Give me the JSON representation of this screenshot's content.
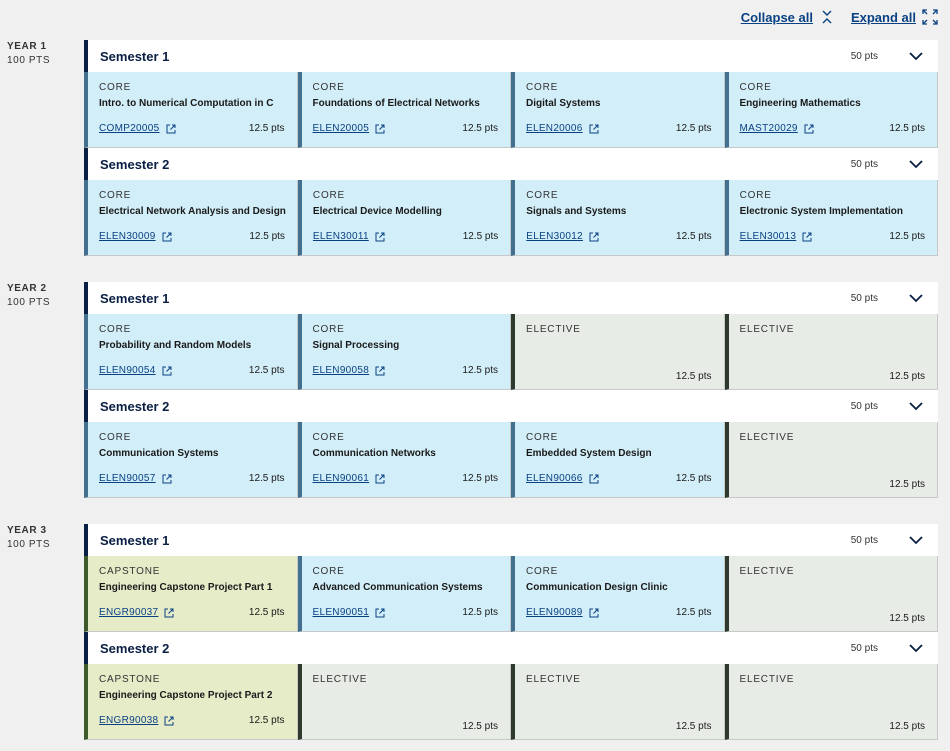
{
  "toolbar": {
    "collapse_label": "Collapse all",
    "expand_label": "Expand all"
  },
  "years": [
    {
      "label": "YEAR 1",
      "points": "100 PTS",
      "semesters": [
        {
          "title": "Semester 1",
          "points": "50 pts",
          "subjects": [
            {
              "type": "CORE",
              "name": "Intro. to Numerical Computation in C",
              "code": "COMP20005",
              "points": "12.5 pts"
            },
            {
              "type": "CORE",
              "name": "Foundations of Electrical Networks",
              "code": "ELEN20005",
              "points": "12.5 pts"
            },
            {
              "type": "CORE",
              "name": "Digital Systems",
              "code": "ELEN20006",
              "points": "12.5 pts"
            },
            {
              "type": "CORE",
              "name": "Engineering Mathematics",
              "code": "MAST20029",
              "points": "12.5 pts"
            }
          ]
        },
        {
          "title": "Semester 2",
          "points": "50 pts",
          "subjects": [
            {
              "type": "CORE",
              "name": "Electrical Network Analysis and Design",
              "code": "ELEN30009",
              "points": "12.5 pts"
            },
            {
              "type": "CORE",
              "name": "Electrical Device Modelling",
              "code": "ELEN30011",
              "points": "12.5 pts"
            },
            {
              "type": "CORE",
              "name": "Signals and Systems",
              "code": "ELEN30012",
              "points": "12.5 pts"
            },
            {
              "type": "CORE",
              "name": "Electronic System Implementation",
              "code": "ELEN30013",
              "points": "12.5 pts"
            }
          ]
        }
      ]
    },
    {
      "label": "YEAR 2",
      "points": "100 PTS",
      "semesters": [
        {
          "title": "Semester 1",
          "points": "50 pts",
          "subjects": [
            {
              "type": "CORE",
              "name": "Probability and Random Models",
              "code": "ELEN90054",
              "points": "12.5 pts"
            },
            {
              "type": "CORE",
              "name": "Signal Processing",
              "code": "ELEN90058",
              "points": "12.5 pts"
            },
            {
              "type": "ELECTIVE",
              "name": "",
              "code": "",
              "points": "12.5 pts"
            },
            {
              "type": "ELECTIVE",
              "name": "",
              "code": "",
              "points": "12.5 pts"
            }
          ]
        },
        {
          "title": "Semester 2",
          "points": "50 pts",
          "subjects": [
            {
              "type": "CORE",
              "name": "Communication Systems",
              "code": "ELEN90057",
              "points": "12.5 pts"
            },
            {
              "type": "CORE",
              "name": "Communication Networks",
              "code": "ELEN90061",
              "points": "12.5 pts"
            },
            {
              "type": "CORE",
              "name": "Embedded System Design",
              "code": "ELEN90066",
              "points": "12.5 pts"
            },
            {
              "type": "ELECTIVE",
              "name": "",
              "code": "",
              "points": "12.5 pts"
            }
          ]
        }
      ]
    },
    {
      "label": "YEAR 3",
      "points": "100 PTS",
      "semesters": [
        {
          "title": "Semester 1",
          "points": "50 pts",
          "subjects": [
            {
              "type": "CAPSTONE",
              "name": "Engineering Capstone Project Part 1",
              "code": "ENGR90037",
              "points": "12.5 pts"
            },
            {
              "type": "CORE",
              "name": "Advanced Communication Systems",
              "code": "ELEN90051",
              "points": "12.5 pts"
            },
            {
              "type": "CORE",
              "name": "Communication Design Clinic",
              "code": "ELEN90089",
              "points": "12.5 pts"
            },
            {
              "type": "ELECTIVE",
              "name": "",
              "code": "",
              "points": "12.5 pts"
            }
          ]
        },
        {
          "title": "Semester 2",
          "points": "50 pts",
          "subjects": [
            {
              "type": "CAPSTONE",
              "name": "Engineering Capstone Project Part 2",
              "code": "ENGR90038",
              "points": "12.5 pts"
            },
            {
              "type": "ELECTIVE",
              "name": "",
              "code": "",
              "points": "12.5 pts"
            },
            {
              "type": "ELECTIVE",
              "name": "",
              "code": "",
              "points": "12.5 pts"
            },
            {
              "type": "ELECTIVE",
              "name": "",
              "code": "",
              "points": "12.5 pts"
            }
          ]
        }
      ]
    }
  ]
}
